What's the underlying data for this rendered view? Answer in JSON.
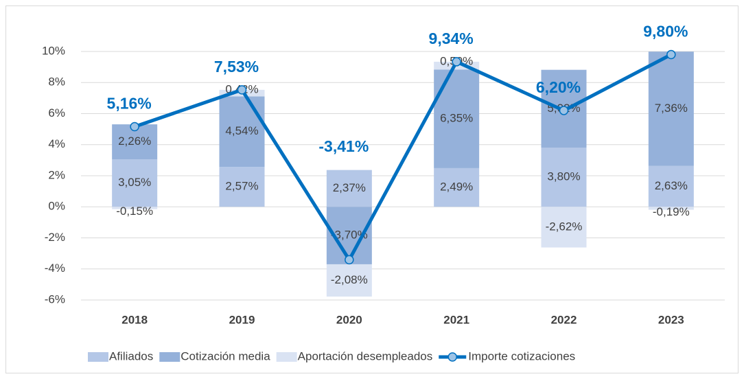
{
  "chart_data": {
    "type": "stacked_bar_line",
    "categories": [
      "2018",
      "2019",
      "2020",
      "2021",
      "2022",
      "2023"
    ],
    "series": [
      {
        "name": "Afiliados",
        "color": "#b4c7e7",
        "kind": "bar",
        "values": [
          3.05,
          2.57,
          2.37,
          2.49,
          3.8,
          2.63
        ],
        "value_labels": [
          "3,05%",
          "2,57%",
          "2,37%",
          "2,49%",
          "3,80%",
          "2,63%"
        ]
      },
      {
        "name": "Cotización media",
        "color": "#95b1da",
        "kind": "bar",
        "values": [
          2.26,
          4.54,
          -3.7,
          6.35,
          5.02,
          7.36
        ],
        "value_labels": [
          "2,26%",
          "4,54%",
          "-3,70%",
          "6,35%",
          "5,02%",
          "7,36%"
        ]
      },
      {
        "name": "Aportación desempleados",
        "color": "#dae3f3",
        "kind": "bar",
        "values": [
          -0.15,
          0.42,
          -2.08,
          0.5,
          -2.62,
          -0.19
        ],
        "value_labels": [
          "-0,15%",
          "0,42%",
          "-2,08%",
          "0,50%",
          "-2,62%",
          "-0,19%"
        ]
      },
      {
        "name": "Importe cotizaciones",
        "color": "#0070c0",
        "kind": "line",
        "values": [
          5.16,
          7.53,
          -3.41,
          9.34,
          6.2,
          9.8
        ],
        "value_labels": [
          "5,16%",
          "7,53%",
          "-3,41%",
          "9,34%",
          "6,20%",
          "9,80%"
        ]
      }
    ],
    "ylim": [
      -6,
      10
    ],
    "yticks": [
      {
        "value": -6,
        "label": "-6%"
      },
      {
        "value": -4,
        "label": "-4%"
      },
      {
        "value": -2,
        "label": "-2%"
      },
      {
        "value": 0,
        "label": "0%"
      },
      {
        "value": 2,
        "label": "2%"
      },
      {
        "value": 4,
        "label": "4%"
      },
      {
        "value": 6,
        "label": "6%"
      },
      {
        "value": 8,
        "label": "8%"
      },
      {
        "value": 10,
        "label": "10%"
      }
    ],
    "grid": true,
    "legend": "bottom"
  }
}
